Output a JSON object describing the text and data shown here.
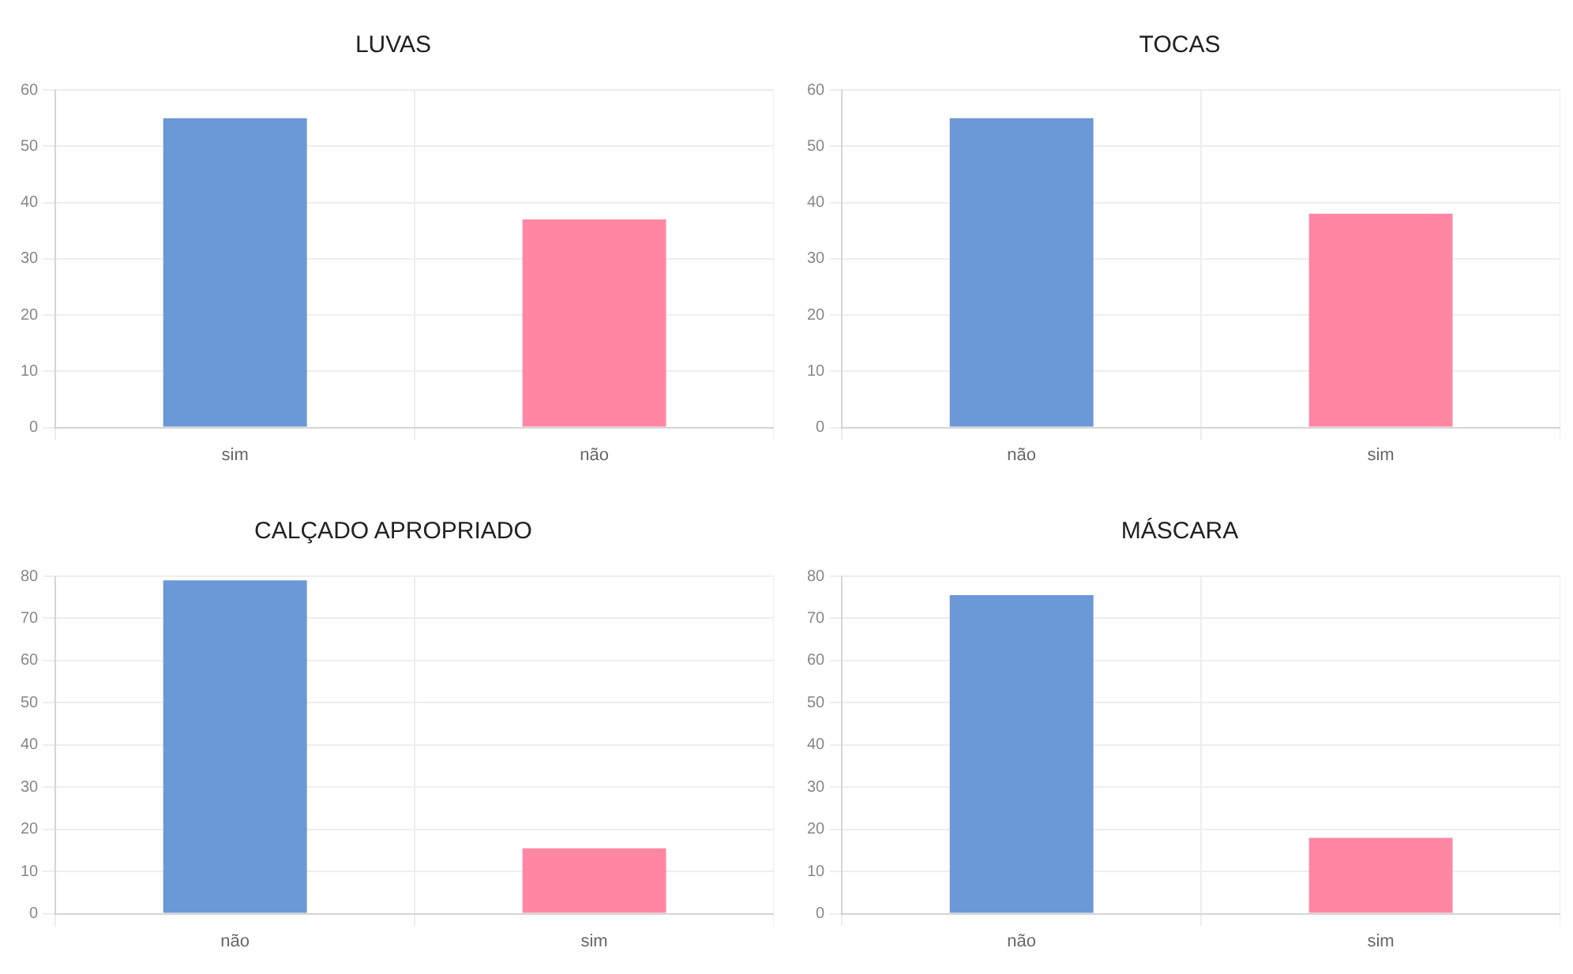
{
  "chart_data": [
    {
      "type": "bar",
      "title": "LUVAS",
      "categories": [
        "sim",
        "não"
      ],
      "values": [
        55,
        37
      ],
      "colors": [
        "#6b98d6",
        "#ff87a3"
      ],
      "ylim": [
        0,
        60
      ],
      "yticks": [
        0,
        10,
        20,
        30,
        40,
        50,
        60
      ],
      "grid": true
    },
    {
      "type": "bar",
      "title": "TOCAS",
      "categories": [
        "não",
        "sim"
      ],
      "values": [
        55,
        38
      ],
      "colors": [
        "#6b98d6",
        "#ff87a3"
      ],
      "ylim": [
        0,
        60
      ],
      "yticks": [
        0,
        10,
        20,
        30,
        40,
        50,
        60
      ],
      "grid": true
    },
    {
      "type": "bar",
      "title": "CALÇADO APROPRIADO",
      "categories": [
        "não",
        "sim"
      ],
      "values": [
        79,
        15.5
      ],
      "colors": [
        "#6b98d6",
        "#ff87a3"
      ],
      "ylim": [
        0,
        80
      ],
      "yticks": [
        0,
        10,
        20,
        30,
        40,
        50,
        60,
        70,
        80
      ],
      "grid": true
    },
    {
      "type": "bar",
      "title": "MÁSCARA",
      "categories": [
        "não",
        "sim"
      ],
      "values": [
        75.5,
        18
      ],
      "colors": [
        "#6b98d6",
        "#ff87a3"
      ],
      "ylim": [
        0,
        80
      ],
      "yticks": [
        0,
        10,
        20,
        30,
        40,
        50,
        60,
        70,
        80
      ],
      "grid": true
    }
  ]
}
